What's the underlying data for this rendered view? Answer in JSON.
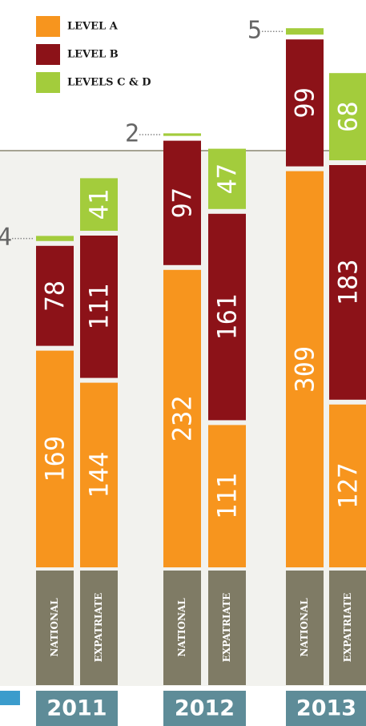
{
  "chart_data": {
    "type": "stacked-bar",
    "categories": [
      "2011",
      "2012",
      "2013"
    ],
    "groups": [
      "NATIONAL",
      "EXPATRIATE"
    ],
    "series": [
      {
        "name": "LEVEL A",
        "color": "#f7951e",
        "values": [
          [
            169,
            144
          ],
          [
            232,
            111
          ],
          [
            309,
            127
          ]
        ]
      },
      {
        "name": "LEVEL B",
        "color": "#8c1218",
        "values": [
          [
            78,
            111
          ],
          [
            97,
            161
          ],
          [
            99,
            183
          ]
        ]
      },
      {
        "name": "LEVELS C & D",
        "color": "#a3cc3c",
        "values": [
          [
            4,
            41
          ],
          [
            2,
            47
          ],
          [
            5,
            68
          ]
        ]
      }
    ]
  }
}
